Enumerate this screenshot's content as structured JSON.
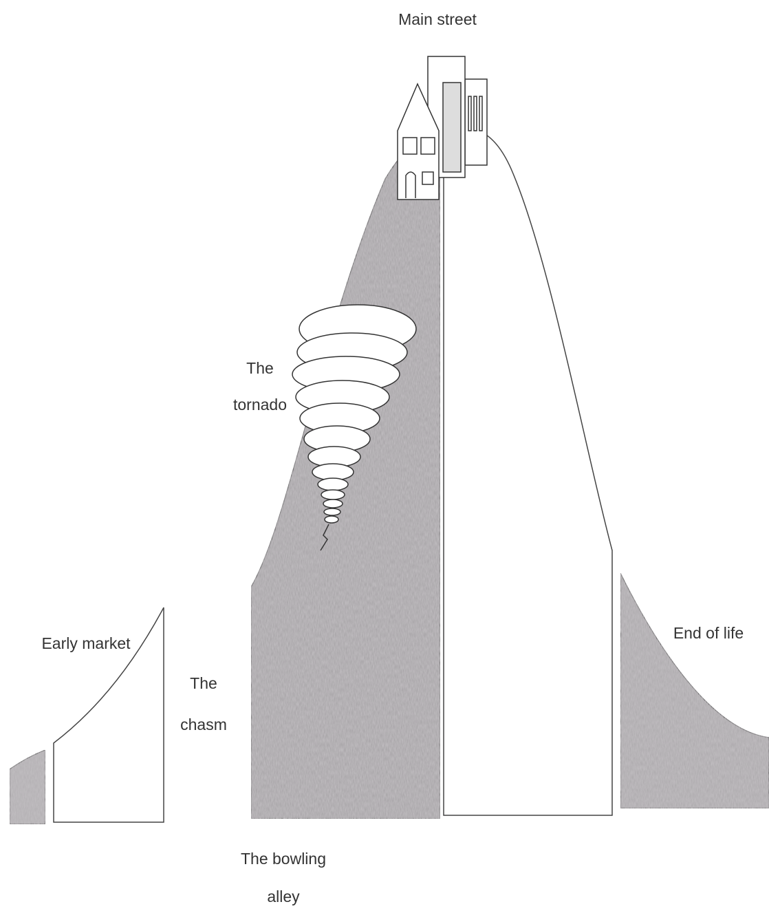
{
  "labels": {
    "main_street": "Main street",
    "tornado": [
      "The",
      "tornado"
    ],
    "early_market": "Early market",
    "chasm": [
      "The",
      "chasm"
    ],
    "end_of_life": "End of life",
    "bowling_alley": [
      "The bowling",
      "alley"
    ]
  }
}
